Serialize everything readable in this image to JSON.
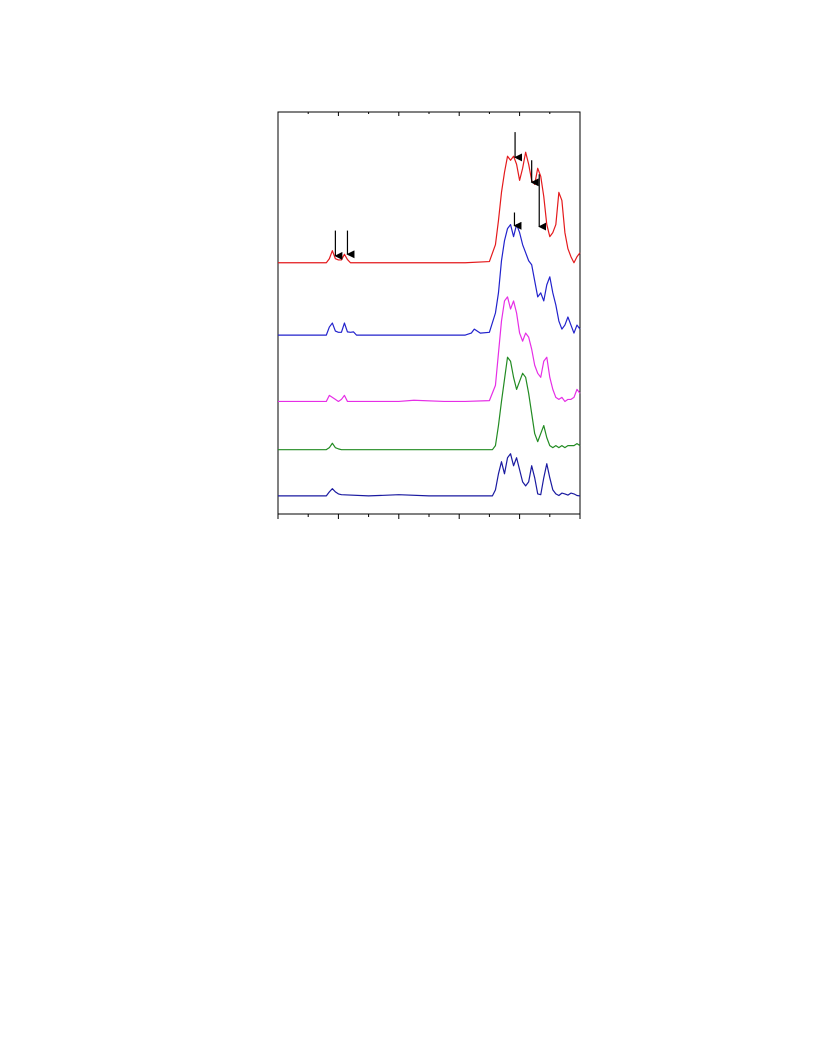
{
  "chart_data": {
    "type": "line",
    "title": "",
    "xlabel": "",
    "ylabel": "",
    "xlim": [
      0,
      100
    ],
    "ylim": [
      0,
      100
    ],
    "grid": false,
    "legend": "none",
    "tick_labels_shown": false,
    "x_major_ticks": [
      0,
      20,
      40,
      60,
      80,
      100
    ],
    "series": [
      {
        "color": "#e41a1c",
        "values": [
          [
            0,
            62.5
          ],
          [
            16,
            62.5
          ],
          [
            17,
            63.5
          ],
          [
            18,
            65.5
          ],
          [
            19,
            63.5
          ],
          [
            20,
            63.2
          ],
          [
            21,
            63.2
          ],
          [
            22,
            64.6
          ],
          [
            23,
            63.3
          ],
          [
            24,
            62.5
          ],
          [
            62,
            62.5
          ],
          [
            70,
            62.8
          ],
          [
            72,
            67
          ],
          [
            73,
            73
          ],
          [
            74,
            80
          ],
          [
            75,
            85
          ],
          [
            76,
            89
          ],
          [
            77,
            88
          ],
          [
            78,
            89
          ],
          [
            79,
            87
          ],
          [
            80,
            83
          ],
          [
            81,
            86
          ],
          [
            82,
            90
          ],
          [
            83,
            87
          ],
          [
            84,
            83
          ],
          [
            85,
            82
          ],
          [
            86,
            86
          ],
          [
            87,
            84
          ],
          [
            88,
            79
          ],
          [
            89,
            72
          ],
          [
            90,
            69
          ],
          [
            91,
            70
          ],
          [
            92,
            72
          ],
          [
            93,
            80
          ],
          [
            94,
            78
          ],
          [
            95,
            70
          ],
          [
            96,
            66
          ],
          [
            97,
            64
          ],
          [
            98,
            62.5
          ],
          [
            99,
            64
          ],
          [
            100,
            65
          ]
        ]
      },
      {
        "color": "#2222cc",
        "values": [
          [
            0,
            44.5
          ],
          [
            16,
            44.5
          ],
          [
            17,
            46.5
          ],
          [
            18,
            47.5
          ],
          [
            19,
            45.5
          ],
          [
            20,
            45.2
          ],
          [
            21,
            45.2
          ],
          [
            22,
            47.5
          ],
          [
            23,
            45.3
          ],
          [
            24,
            45.2
          ],
          [
            25,
            45.3
          ],
          [
            26,
            44.5
          ],
          [
            62,
            44.5
          ],
          [
            64,
            45
          ],
          [
            65,
            46
          ],
          [
            66,
            45.5
          ],
          [
            67,
            45
          ],
          [
            70,
            45.2
          ],
          [
            72,
            50
          ],
          [
            73,
            55
          ],
          [
            74,
            63
          ],
          [
            75,
            68
          ],
          [
            76,
            71
          ],
          [
            77,
            72
          ],
          [
            78,
            69
          ],
          [
            79,
            72
          ],
          [
            80,
            70
          ],
          [
            81,
            67
          ],
          [
            82,
            65
          ],
          [
            83,
            63
          ],
          [
            84,
            62
          ],
          [
            85,
            58
          ],
          [
            86,
            54
          ],
          [
            87,
            55
          ],
          [
            88,
            53
          ],
          [
            89,
            57
          ],
          [
            90,
            59
          ],
          [
            91,
            55
          ],
          [
            92,
            52
          ],
          [
            93,
            48
          ],
          [
            94,
            46
          ],
          [
            95,
            47
          ],
          [
            96,
            49
          ],
          [
            97,
            47
          ],
          [
            98,
            45
          ],
          [
            99,
            47
          ],
          [
            100,
            46
          ]
        ]
      },
      {
        "color": "#e62ee6",
        "values": [
          [
            0,
            28
          ],
          [
            16,
            28
          ],
          [
            17,
            29.5
          ],
          [
            18,
            29
          ],
          [
            19,
            28.5
          ],
          [
            20,
            28
          ],
          [
            21,
            28.5
          ],
          [
            22,
            29.5
          ],
          [
            23,
            28
          ],
          [
            24,
            28
          ],
          [
            40,
            28
          ],
          [
            45,
            28.3
          ],
          [
            55,
            28
          ],
          [
            62,
            28
          ],
          [
            70,
            28.2
          ],
          [
            72,
            32
          ],
          [
            73,
            40
          ],
          [
            74,
            48
          ],
          [
            75,
            53
          ],
          [
            76,
            54
          ],
          [
            77,
            51
          ],
          [
            78,
            53
          ],
          [
            79,
            50
          ],
          [
            80,
            45
          ],
          [
            81,
            43
          ],
          [
            82,
            45
          ],
          [
            83,
            44
          ],
          [
            84,
            41
          ],
          [
            85,
            37
          ],
          [
            86,
            35
          ],
          [
            87,
            34
          ],
          [
            88,
            38
          ],
          [
            89,
            39
          ],
          [
            90,
            34
          ],
          [
            91,
            31
          ],
          [
            92,
            29
          ],
          [
            93,
            28.5
          ],
          [
            94,
            29
          ],
          [
            95,
            28
          ],
          [
            96,
            28.5
          ],
          [
            97,
            28.5
          ],
          [
            98,
            29
          ],
          [
            99,
            31
          ],
          [
            100,
            30
          ]
        ]
      },
      {
        "color": "#228b22",
        "values": [
          [
            0,
            16
          ],
          [
            16,
            16
          ],
          [
            17,
            16.5
          ],
          [
            18,
            17.6
          ],
          [
            19,
            16.5
          ],
          [
            20,
            16.2
          ],
          [
            21,
            16
          ],
          [
            30,
            16
          ],
          [
            60,
            16
          ],
          [
            71,
            16
          ],
          [
            72,
            17
          ],
          [
            73,
            22
          ],
          [
            74,
            28
          ],
          [
            75,
            33.5
          ],
          [
            76,
            39
          ],
          [
            77,
            38
          ],
          [
            78,
            34
          ],
          [
            79,
            31
          ],
          [
            80,
            33
          ],
          [
            81,
            35
          ],
          [
            82,
            34
          ],
          [
            83,
            30
          ],
          [
            84,
            25
          ],
          [
            85,
            20
          ],
          [
            86,
            18
          ],
          [
            87,
            20
          ],
          [
            88,
            22
          ],
          [
            89,
            19
          ],
          [
            90,
            17
          ],
          [
            91,
            16.5
          ],
          [
            92,
            17
          ],
          [
            93,
            16.5
          ],
          [
            94,
            17
          ],
          [
            95,
            16.5
          ],
          [
            96,
            17
          ],
          [
            97,
            17
          ],
          [
            98,
            17
          ],
          [
            99,
            17.5
          ],
          [
            100,
            17
          ]
        ]
      },
      {
        "color": "#1a1aa0",
        "values": [
          [
            0,
            4.5
          ],
          [
            16,
            4.5
          ],
          [
            17,
            5.5
          ],
          [
            18,
            6.3
          ],
          [
            19,
            5.5
          ],
          [
            20,
            5
          ],
          [
            21,
            4.8
          ],
          [
            30,
            4.5
          ],
          [
            40,
            4.8
          ],
          [
            50,
            4.5
          ],
          [
            60,
            4.5
          ],
          [
            71,
            4.5
          ],
          [
            72,
            6
          ],
          [
            73,
            10
          ],
          [
            74,
            13
          ],
          [
            75,
            10
          ],
          [
            76,
            14
          ],
          [
            77,
            15
          ],
          [
            78,
            12
          ],
          [
            79,
            14
          ],
          [
            80,
            11
          ],
          [
            81,
            8
          ],
          [
            82,
            7
          ],
          [
            83,
            8
          ],
          [
            84,
            12
          ],
          [
            85,
            9
          ],
          [
            86,
            5
          ],
          [
            87,
            4.8
          ],
          [
            88,
            9
          ],
          [
            89,
            12.5
          ],
          [
            90,
            9
          ],
          [
            91,
            6
          ],
          [
            92,
            5
          ],
          [
            93,
            4.6
          ],
          [
            94,
            5.2
          ],
          [
            95,
            5
          ],
          [
            96,
            4.7
          ],
          [
            97,
            5.2
          ],
          [
            98,
            5
          ],
          [
            99,
            4.6
          ],
          [
            100,
            4.5
          ]
        ]
      }
    ],
    "annotations": [
      {
        "type": "arrow",
        "series": 0,
        "x": 19,
        "tail_y": 70.5,
        "head_y": 64.2
      },
      {
        "type": "arrow",
        "series": 0,
        "x": 23,
        "tail_y": 70.5,
        "head_y": 64.6
      },
      {
        "type": "arrow",
        "series": 0,
        "x": 78.5,
        "tail_y": 95,
        "head_y": 88.7
      },
      {
        "type": "arrow",
        "series": 0,
        "x": 84,
        "tail_y": 88,
        "head_y": 82.5
      },
      {
        "type": "arrow",
        "series": 0,
        "x": 86.5,
        "tail_y": 84.5,
        "head_y": 71.5
      },
      {
        "type": "arrow",
        "series": 1,
        "x": 78.3,
        "tail_y": 75,
        "head_y": 71.7
      }
    ]
  }
}
